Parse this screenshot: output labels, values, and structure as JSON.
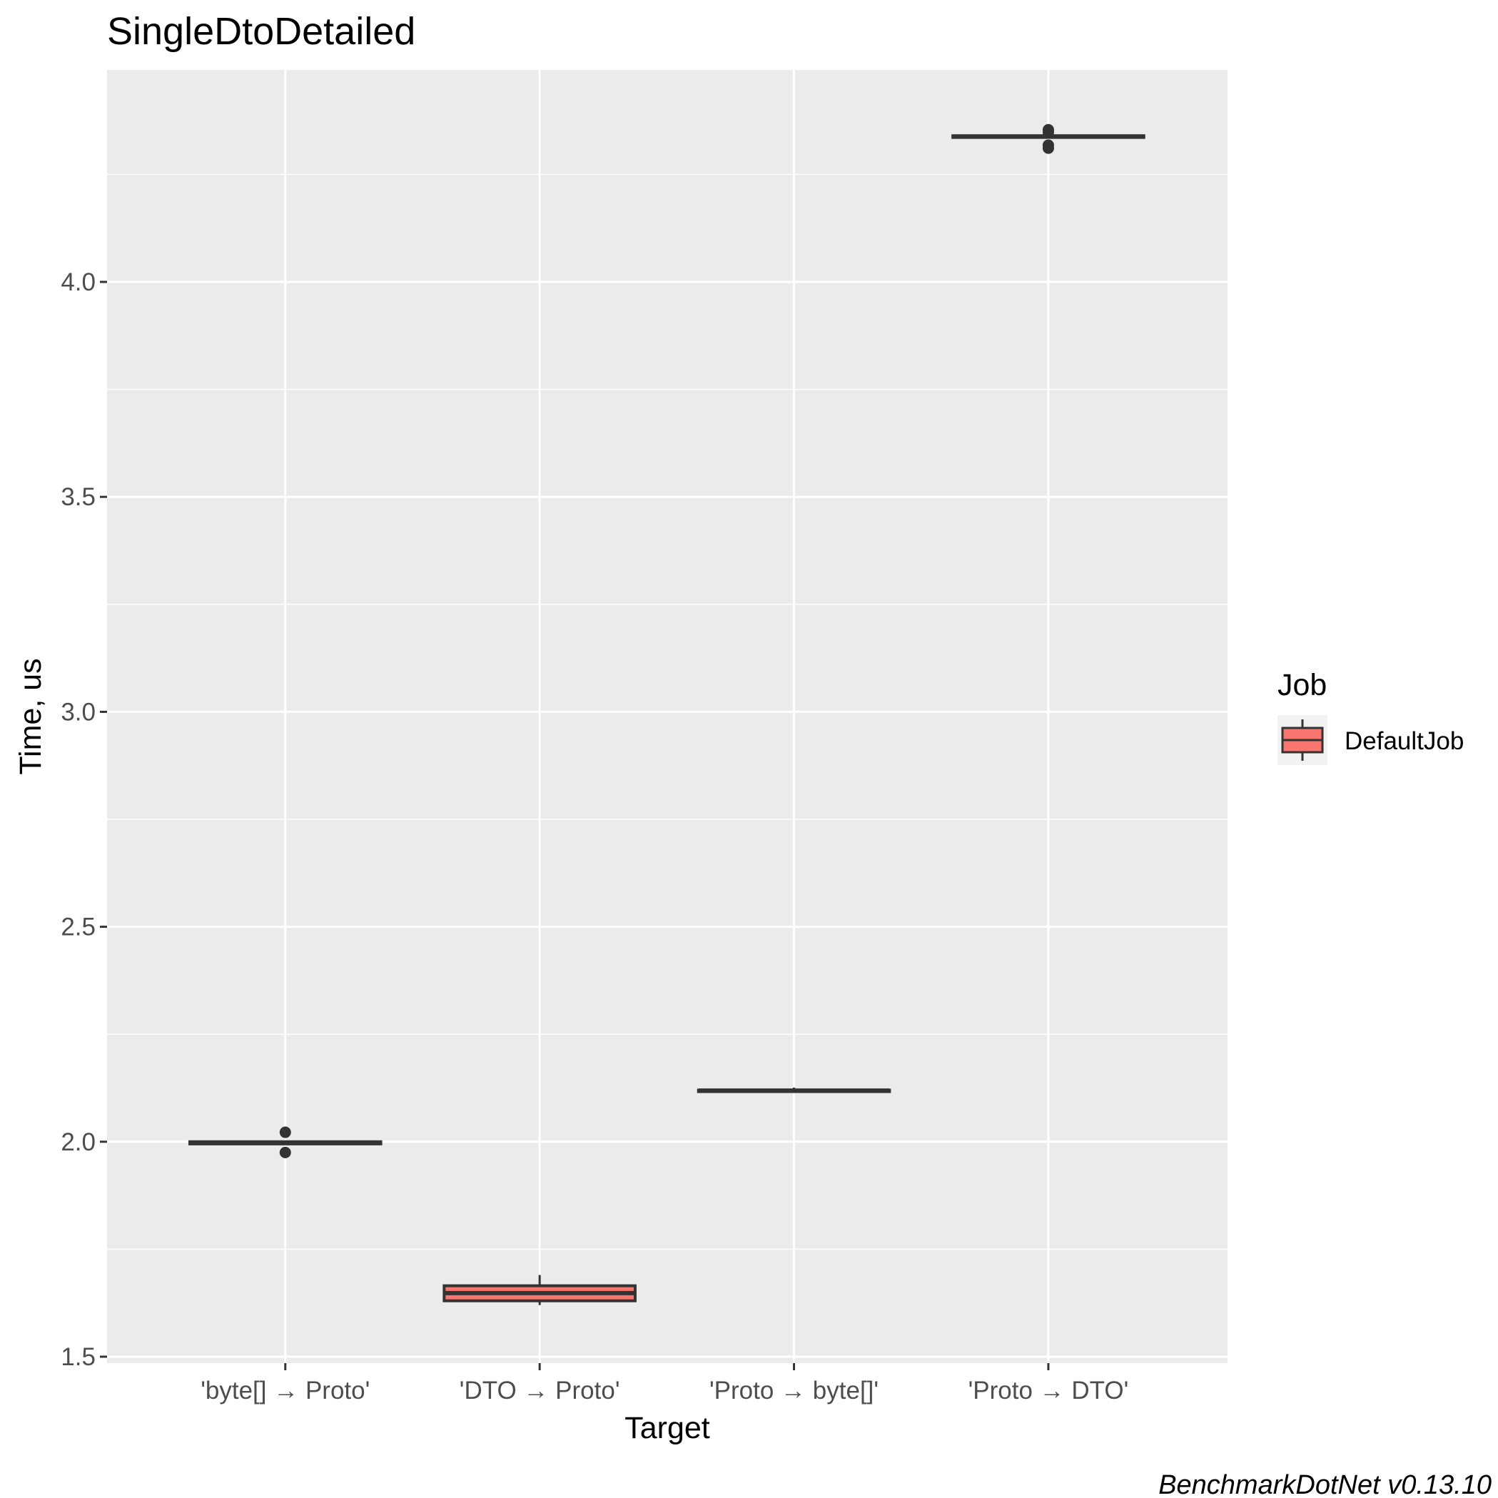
{
  "chart_data": {
    "type": "box",
    "title": "SingleDtoDetailed",
    "xlabel": "Target",
    "ylabel": "Time, us",
    "caption": "BenchmarkDotNet v0.13.10",
    "ylim": [
      1.5,
      4.5
    ],
    "y_ticks": [
      1.5,
      2.0,
      2.5,
      3.0,
      3.5,
      4.0
    ],
    "y_tick_labels": [
      "1.5",
      "2.0",
      "2.5",
      "3.0",
      "3.5",
      "4.0"
    ],
    "grid": true,
    "legend": {
      "title": "Job",
      "position": "right",
      "entries": [
        {
          "name": "DefaultJob",
          "color": "#F8766D"
        }
      ]
    },
    "categories": [
      "'byte[] → Proto'",
      "'DTO → Proto'",
      "'Proto → byte[]'",
      "'Proto → DTO'"
    ],
    "series": [
      {
        "name": "DefaultJob",
        "color": "#F8766D",
        "boxes": [
          {
            "category": "'byte[] → Proto'",
            "whisker_low": 1.993,
            "q1": 1.995,
            "median": 1.997,
            "q3": 2.0,
            "whisker_high": 2.002,
            "outliers": [
              1.975,
              2.022
            ]
          },
          {
            "category": "'DTO → Proto'",
            "whisker_low": 1.62,
            "q1": 1.63,
            "median": 1.648,
            "q3": 1.665,
            "whisker_high": 1.69,
            "outliers": []
          },
          {
            "category": "'Proto → byte[]'",
            "whisker_low": 2.116,
            "q1": 2.117,
            "median": 2.119,
            "q3": 2.12,
            "whisker_high": 2.126,
            "outliers": []
          },
          {
            "category": "'Proto → DTO'",
            "whisker_low": 4.335,
            "q1": 4.336,
            "median": 4.338,
            "q3": 4.34,
            "whisker_high": 4.342,
            "outliers": [
              4.311,
              4.318,
              4.348,
              4.354
            ]
          }
        ]
      }
    ]
  }
}
